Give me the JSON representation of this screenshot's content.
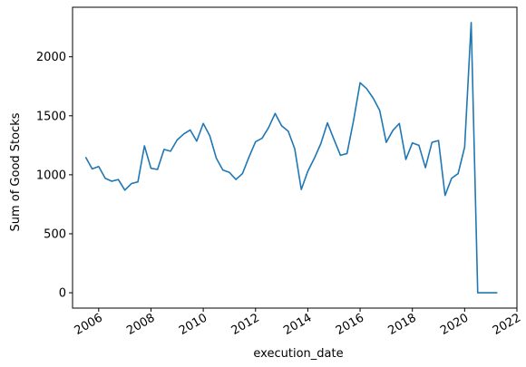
{
  "chart_data": {
    "type": "line",
    "title": "",
    "xlabel": "execution_date",
    "ylabel": "Sum of Good Stocks",
    "xlim": [
      2005.0,
      2022.0
    ],
    "ylim": [
      -130,
      2420
    ],
    "grid": false,
    "legend": "none",
    "line_color": "#1f77b4",
    "xticks": [
      2006,
      2008,
      2010,
      2012,
      2014,
      2016,
      2018,
      2020,
      2022
    ],
    "xtick_labels": [
      "2006",
      "2008",
      "2010",
      "2012",
      "2014",
      "2016",
      "2018",
      "2020",
      "2022"
    ],
    "yticks": [
      0,
      500,
      1000,
      1500,
      2000
    ],
    "ytick_labels": [
      "0",
      "500",
      "1000",
      "1500",
      "2000"
    ],
    "series": [
      {
        "x": [
          2005.5,
          2005.75,
          2006.0,
          2006.25,
          2006.5,
          2006.75,
          2007.0,
          2007.25,
          2007.5,
          2007.75,
          2008.0,
          2008.25,
          2008.5,
          2008.75,
          2009.0,
          2009.25,
          2009.5,
          2009.75,
          2010.0,
          2010.25,
          2010.5,
          2010.75,
          2011.0,
          2011.25,
          2011.5,
          2011.75,
          2012.0,
          2012.25,
          2012.5,
          2012.75,
          2013.0,
          2013.25,
          2013.5,
          2013.75,
          2014.0,
          2014.25,
          2014.5,
          2014.75,
          2015.0,
          2015.25,
          2015.5,
          2015.75,
          2016.0,
          2016.25,
          2016.5,
          2016.75,
          2017.0,
          2017.25,
          2017.5,
          2017.75,
          2018.0,
          2018.25,
          2018.5,
          2018.75,
          2019.0,
          2019.25,
          2019.5,
          2019.75,
          2020.0,
          2020.25,
          2020.5,
          2020.75,
          2021.0,
          2021.25
        ],
        "y": [
          1150,
          1050,
          1070,
          970,
          945,
          960,
          870,
          925,
          940,
          1245,
          1055,
          1045,
          1215,
          1200,
          1295,
          1345,
          1380,
          1285,
          1435,
          1330,
          1140,
          1040,
          1020,
          960,
          1010,
          1150,
          1280,
          1310,
          1400,
          1520,
          1415,
          1370,
          1220,
          875,
          1030,
          1140,
          1265,
          1440,
          1300,
          1165,
          1180,
          1460,
          1780,
          1730,
          1650,
          1545,
          1275,
          1375,
          1435,
          1130,
          1270,
          1250,
          1060,
          1275,
          1290,
          825,
          970,
          1010,
          1235,
          2290,
          0,
          0,
          0,
          0
        ]
      }
    ]
  }
}
